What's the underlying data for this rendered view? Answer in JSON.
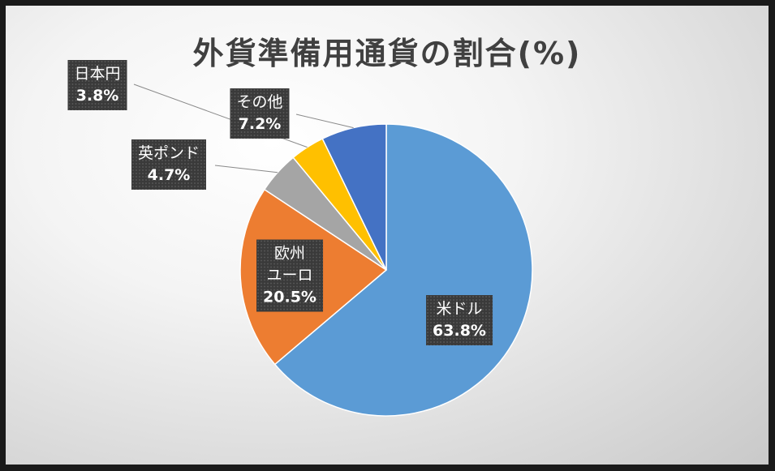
{
  "chart_data": {
    "type": "pie",
    "title": "外貨準備用通貨の割合(%)",
    "categories": [
      "米ドル",
      "欧州\nユーロ",
      "英ポンド",
      "日本円",
      "その他"
    ],
    "values": [
      63.8,
      20.5,
      4.7,
      3.8,
      7.2
    ],
    "value_labels": [
      "63.8%",
      "20.5%",
      "4.7%",
      "3.8%",
      "7.2%"
    ],
    "colors": [
      "#5b9bd5",
      "#ed7d31",
      "#a5a5a5",
      "#ffc000",
      "#4472c4"
    ]
  }
}
